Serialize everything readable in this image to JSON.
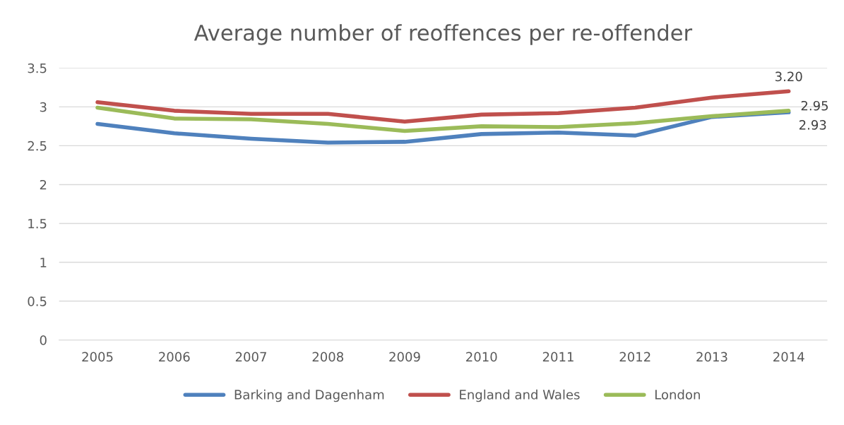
{
  "chart_data": {
    "type": "line",
    "title": "Average number of reoffences per re-offender",
    "categories": [
      "2005",
      "2006",
      "2007",
      "2008",
      "2009",
      "2010",
      "2011",
      "2012",
      "2013",
      "2014"
    ],
    "series": [
      {
        "name": "Barking and Dagenham",
        "color": "#4f81bd",
        "values": [
          2.78,
          2.66,
          2.59,
          2.54,
          2.55,
          2.65,
          2.67,
          2.63,
          2.87,
          2.93
        ],
        "value_labels": [
          null,
          null,
          null,
          null,
          null,
          null,
          null,
          null,
          null,
          "2.93"
        ]
      },
      {
        "name": "England and Wales",
        "color": "#c0504d",
        "values": [
          3.06,
          2.95,
          2.91,
          2.91,
          2.81,
          2.9,
          2.92,
          2.99,
          3.12,
          3.2
        ],
        "value_labels": [
          null,
          null,
          null,
          null,
          null,
          null,
          null,
          null,
          null,
          "3.20"
        ]
      },
      {
        "name": "London",
        "color": "#9bbb59",
        "values": [
          2.99,
          2.85,
          2.84,
          2.78,
          2.69,
          2.75,
          2.74,
          2.79,
          2.88,
          2.95
        ],
        "value_labels": [
          null,
          null,
          null,
          null,
          null,
          null,
          null,
          null,
          null,
          "2.95"
        ]
      }
    ],
    "ylim": [
      0,
      3.5
    ],
    "yticks": [
      0,
      0.5,
      1,
      1.5,
      2,
      2.5,
      3,
      3.5
    ],
    "grid": "y",
    "legend": "bottom",
    "marker": "none",
    "line_style": "solid"
  }
}
